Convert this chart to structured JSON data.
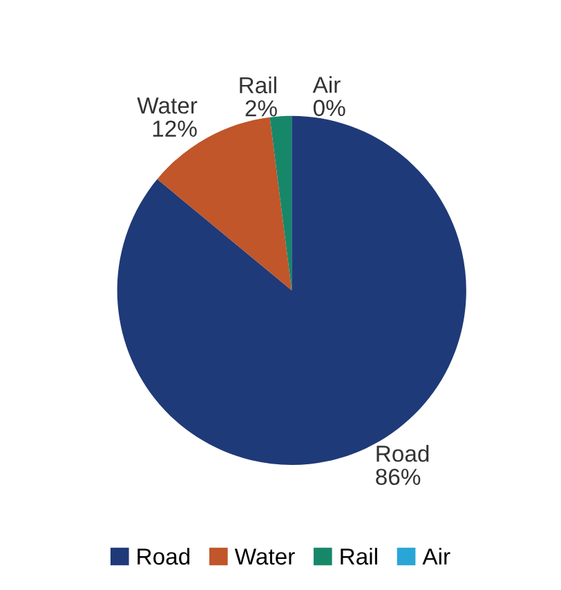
{
  "chart_data": {
    "type": "pie",
    "categories": [
      "Road",
      "Water",
      "Rail",
      "Air"
    ],
    "values": [
      86,
      12,
      2,
      0
    ],
    "value_labels": [
      "86%",
      "12%",
      "2%",
      "0%"
    ],
    "colors": [
      "#1f3a78",
      "#c0562a",
      "#17876a",
      "#29a6d6"
    ],
    "legend": "bottom"
  }
}
